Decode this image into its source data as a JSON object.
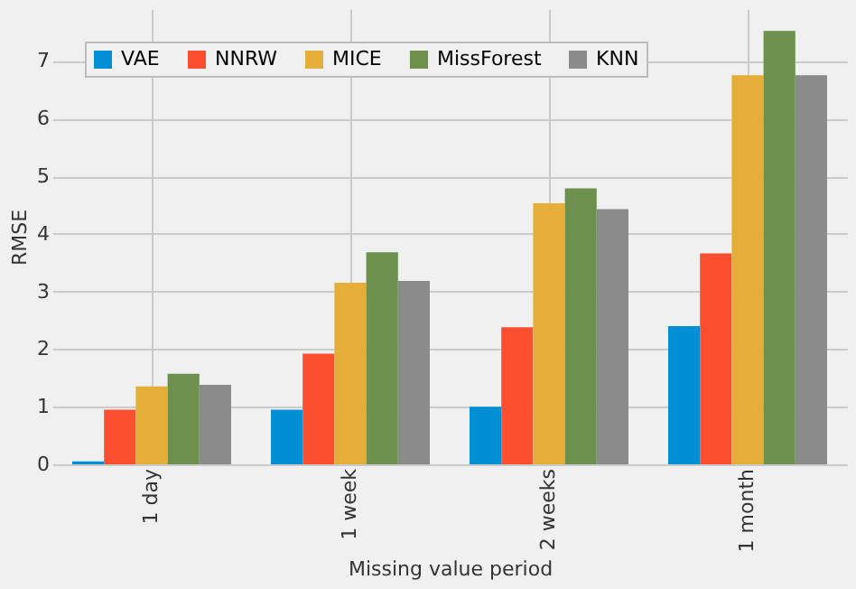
{
  "chart_data": {
    "type": "bar",
    "xlabel": "Missing value period",
    "ylabel": "RMSE",
    "categories": [
      "1 day",
      "1 week",
      "2 weeks",
      "1 month"
    ],
    "series": [
      {
        "name": "VAE",
        "color": "#008fd5",
        "values": [
          0.05,
          0.95,
          1.0,
          2.4
        ]
      },
      {
        "name": "NNRW",
        "color": "#fc4f30",
        "values": [
          0.95,
          1.92,
          2.38,
          3.66
        ]
      },
      {
        "name": "MICE",
        "color": "#e5ae38",
        "values": [
          1.35,
          3.15,
          4.53,
          6.75
        ]
      },
      {
        "name": "MissForest",
        "color": "#6d904f",
        "values": [
          1.57,
          3.68,
          4.79,
          7.52
        ]
      },
      {
        "name": "KNN",
        "color": "#8b8b8b",
        "values": [
          1.38,
          3.18,
          4.43,
          6.75
        ]
      }
    ],
    "ylim": [
      0,
      7.9
    ],
    "yticks": [
      0,
      1,
      2,
      3,
      4,
      5,
      6,
      7
    ],
    "grid": true,
    "legend": "top left"
  }
}
